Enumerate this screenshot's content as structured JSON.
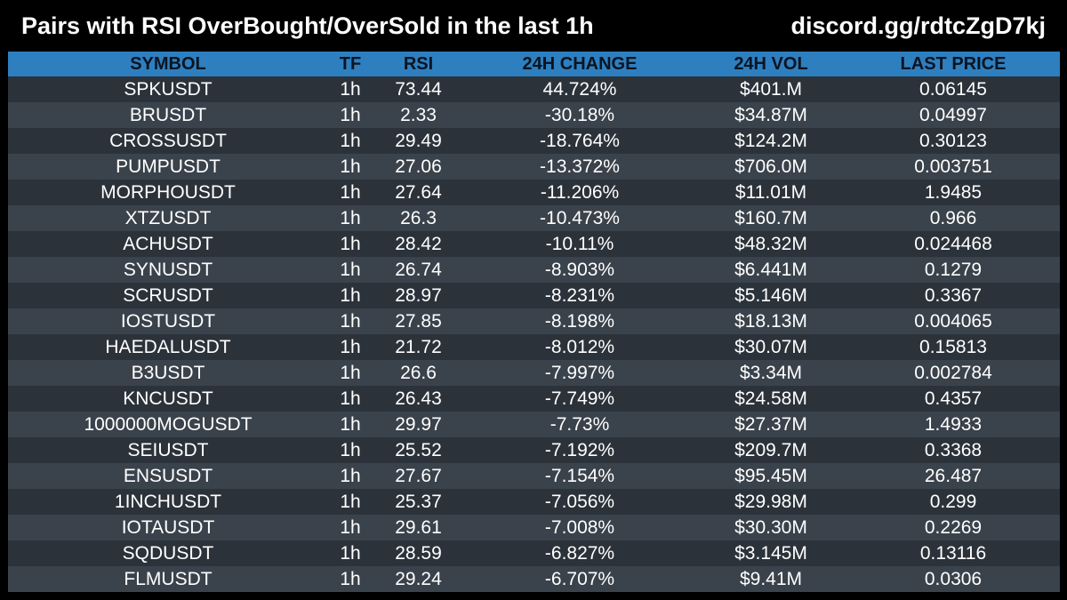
{
  "header": {
    "title": "Pairs with RSI OverBought/OverSold in the last 1h",
    "link": "discord.gg/rdtcZgD7kj"
  },
  "colors": {
    "background": "#000000",
    "header_row": "#2e7fc0",
    "row_dark": "#2b323a",
    "row_light": "#3a424b",
    "text": "#ffffff"
  },
  "table": {
    "columns": [
      "SYMBOL",
      "TF",
      "RSI",
      "24H CHANGE",
      "24H VOL",
      "LAST PRICE"
    ],
    "rows": [
      [
        "SPKUSDT",
        "1h",
        "73.44",
        "44.724%",
        "$401.M",
        "0.06145"
      ],
      [
        "BRUSDT",
        "1h",
        "2.33",
        "-30.18%",
        "$34.87M",
        "0.04997"
      ],
      [
        "CROSSUSDT",
        "1h",
        "29.49",
        "-18.764%",
        "$124.2M",
        "0.30123"
      ],
      [
        "PUMPUSDT",
        "1h",
        "27.06",
        "-13.372%",
        "$706.0M",
        "0.003751"
      ],
      [
        "MORPHOUSDT",
        "1h",
        "27.64",
        "-11.206%",
        "$11.01M",
        "1.9485"
      ],
      [
        "XTZUSDT",
        "1h",
        "26.3",
        "-10.473%",
        "$160.7M",
        "0.966"
      ],
      [
        "ACHUSDT",
        "1h",
        "28.42",
        "-10.11%",
        "$48.32M",
        "0.024468"
      ],
      [
        "SYNUSDT",
        "1h",
        "26.74",
        "-8.903%",
        "$6.441M",
        "0.1279"
      ],
      [
        "SCRUSDT",
        "1h",
        "28.97",
        "-8.231%",
        "$5.146M",
        "0.3367"
      ],
      [
        "IOSTUSDT",
        "1h",
        "27.85",
        "-8.198%",
        "$18.13M",
        "0.004065"
      ],
      [
        "HAEDALUSDT",
        "1h",
        "21.72",
        "-8.012%",
        "$30.07M",
        "0.15813"
      ],
      [
        "B3USDT",
        "1h",
        "26.6",
        "-7.997%",
        "$3.34M",
        "0.002784"
      ],
      [
        "KNCUSDT",
        "1h",
        "26.43",
        "-7.749%",
        "$24.58M",
        "0.4357"
      ],
      [
        "1000000MOGUSDT",
        "1h",
        "29.97",
        "-7.73%",
        "$27.37M",
        "1.4933"
      ],
      [
        "SEIUSDT",
        "1h",
        "25.52",
        "-7.192%",
        "$209.7M",
        "0.3368"
      ],
      [
        "ENSUSDT",
        "1h",
        "27.67",
        "-7.154%",
        "$95.45M",
        "26.487"
      ],
      [
        "1INCHUSDT",
        "1h",
        "25.37",
        "-7.056%",
        "$29.98M",
        "0.299"
      ],
      [
        "IOTAUSDT",
        "1h",
        "29.61",
        "-7.008%",
        "$30.30M",
        "0.2269"
      ],
      [
        "SQDUSDT",
        "1h",
        "28.59",
        "-6.827%",
        "$3.145M",
        "0.13116"
      ],
      [
        "FLMUSDT",
        "1h",
        "29.24",
        "-6.707%",
        "$9.41M",
        "0.0306"
      ]
    ]
  }
}
